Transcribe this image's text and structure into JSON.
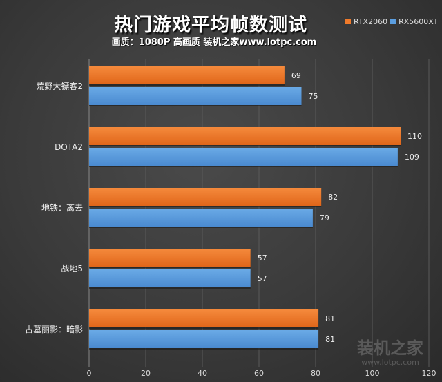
{
  "chart_data": {
    "type": "bar",
    "orientation": "horizontal",
    "title": "热门游戏平均帧数测试",
    "subtitle": "画质：1080P 高画质 装机之家www.lotpc.com",
    "categories": [
      "荒野大镖客2",
      "DOTA2",
      "地铁：离去",
      "战地5",
      "古墓丽影：暗影"
    ],
    "series": [
      {
        "name": "RTX2060",
        "color": "#f07a2a",
        "values": [
          69,
          110,
          82,
          57,
          81
        ]
      },
      {
        "name": "RX5600XT",
        "color": "#5b9ee0",
        "values": [
          75,
          109,
          79,
          57,
          81
        ]
      }
    ],
    "xlim": [
      0,
      120
    ],
    "xticks": [
      0,
      20,
      40,
      60,
      80,
      100,
      120
    ],
    "grid": true,
    "legend": "top-right",
    "xlabel": "",
    "ylabel": ""
  },
  "watermark": "装机之家 www.lotpc.com"
}
